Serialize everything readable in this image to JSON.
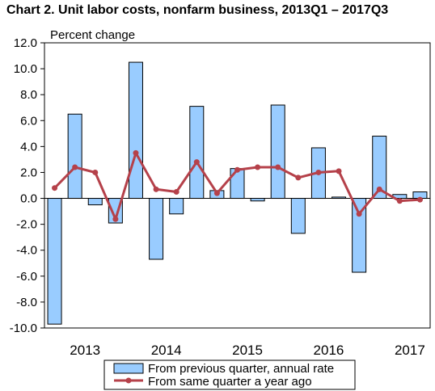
{
  "chart_data": {
    "type": "bar+line",
    "title": "Chart  2. Unit labor costs, nonfarm business, 2013Q1 – 2017Q3",
    "ylabel": "Percent change",
    "ylim": [
      -10,
      12
    ],
    "yticks": [
      "12.0",
      "10.0",
      "8.0",
      "6.0",
      "4.0",
      "2.0",
      "0.0",
      "-2.0",
      "-4.0",
      "-6.0",
      "-8.0",
      "-10.0"
    ],
    "year_labels": [
      "2013",
      "2014",
      "2015",
      "2016",
      "2017"
    ],
    "categories": [
      "2013Q1",
      "2013Q2",
      "2013Q3",
      "2013Q4",
      "2014Q1",
      "2014Q2",
      "2014Q3",
      "2014Q4",
      "2015Q1",
      "2015Q2",
      "2015Q3",
      "2015Q4",
      "2016Q1",
      "2016Q2",
      "2016Q3",
      "2016Q4",
      "2017Q1",
      "2017Q2",
      "2017Q3"
    ],
    "series": [
      {
        "name": "From previous quarter, annual rate",
        "kind": "bar",
        "color": "#99ccff",
        "values": [
          -9.7,
          6.5,
          -0.5,
          -1.9,
          10.5,
          -4.7,
          -1.2,
          7.1,
          0.6,
          2.3,
          -0.2,
          7.2,
          -2.7,
          3.9,
          0.1,
          -5.7,
          4.8,
          0.3,
          0.5
        ]
      },
      {
        "name": "From same quarter a year ago",
        "kind": "line",
        "color": "#b5414a",
        "values": [
          0.8,
          2.4,
          2.0,
          -1.6,
          3.5,
          0.7,
          0.5,
          2.8,
          0.4,
          2.2,
          2.4,
          2.4,
          1.6,
          2.0,
          2.1,
          -1.2,
          0.7,
          -0.2,
          -0.1
        ]
      }
    ],
    "grid": false,
    "legend": "bottom"
  }
}
